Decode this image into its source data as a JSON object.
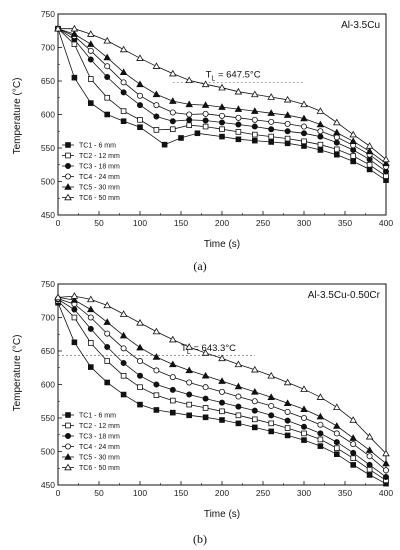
{
  "chart_data": [
    {
      "type": "line",
      "panel_label": "(a)",
      "title": "Al-3.5Cu",
      "xlabel": "Time (s)",
      "ylabel": "Temperature (°C)",
      "xlim": [
        0,
        400
      ],
      "ylim": [
        450,
        750
      ],
      "xticks": [
        0,
        50,
        100,
        150,
        200,
        250,
        300,
        350,
        400
      ],
      "yticks": [
        450,
        500,
        550,
        600,
        650,
        700,
        750
      ],
      "grid": false,
      "legend_position": "bottom-left",
      "annotation": {
        "prefix": "T",
        "subscript": "L",
        "text": " = 647.5°C",
        "value": 647.5,
        "line_x": [
          140,
          300
        ],
        "label_x": 180,
        "label_y": 655
      },
      "series": [
        {
          "name": "TC1 - 6 mm",
          "marker": "square-filled",
          "x": [
            0,
            20,
            40,
            60,
            80,
            100,
            130,
            150,
            170,
            200,
            220,
            240,
            260,
            280,
            300,
            320,
            340,
            360,
            380,
            400
          ],
          "y": [
            728,
            655,
            617,
            600,
            590,
            581,
            555,
            565,
            572,
            567,
            563,
            561,
            559,
            557,
            553,
            547,
            540,
            530,
            518,
            502
          ]
        },
        {
          "name": "TC2 - 12 mm",
          "marker": "square-open",
          "x": [
            0,
            20,
            40,
            60,
            80,
            100,
            120,
            140,
            160,
            180,
            200,
            220,
            240,
            260,
            280,
            300,
            320,
            340,
            360,
            380,
            400
          ],
          "y": [
            728,
            705,
            653,
            625,
            605,
            592,
            577,
            578,
            584,
            582,
            578,
            574,
            570,
            567,
            564,
            560,
            555,
            548,
            538,
            525,
            508
          ]
        },
        {
          "name": "TC3 - 18 mm",
          "marker": "circle-filled",
          "x": [
            0,
            20,
            40,
            60,
            80,
            100,
            120,
            140,
            160,
            180,
            200,
            220,
            240,
            260,
            280,
            300,
            320,
            340,
            360,
            380,
            400
          ],
          "y": [
            728,
            712,
            682,
            656,
            633,
            614,
            597,
            590,
            592,
            591,
            588,
            585,
            582,
            578,
            575,
            572,
            567,
            558,
            547,
            533,
            515
          ]
        },
        {
          "name": "TC4 - 24 mm",
          "marker": "circle-open",
          "x": [
            0,
            20,
            40,
            60,
            80,
            100,
            120,
            140,
            160,
            180,
            200,
            220,
            240,
            260,
            280,
            300,
            320,
            340,
            360,
            380,
            400
          ],
          "y": [
            728,
            717,
            695,
            672,
            648,
            628,
            614,
            603,
            600,
            601,
            598,
            595,
            592,
            589,
            586,
            582,
            575,
            566,
            554,
            540,
            522
          ]
        },
        {
          "name": "TC5 - 30 mm",
          "marker": "triangle-filled",
          "x": [
            0,
            20,
            40,
            60,
            80,
            100,
            120,
            140,
            160,
            180,
            200,
            220,
            240,
            260,
            280,
            300,
            320,
            340,
            360,
            380,
            400
          ],
          "y": [
            728,
            720,
            705,
            685,
            663,
            645,
            630,
            620,
            615,
            614,
            611,
            608,
            605,
            602,
            599,
            594,
            585,
            573,
            560,
            545,
            527
          ]
        },
        {
          "name": "TC6 - 50 mm",
          "marker": "triangle-open",
          "x": [
            0,
            20,
            40,
            60,
            80,
            100,
            120,
            140,
            160,
            180,
            200,
            220,
            240,
            260,
            280,
            300,
            320,
            340,
            360,
            380,
            400
          ],
          "y": [
            728,
            728,
            720,
            710,
            697,
            684,
            672,
            661,
            651,
            645,
            640,
            634,
            630,
            626,
            622,
            615,
            605,
            588,
            570,
            553,
            533
          ]
        }
      ]
    },
    {
      "type": "line",
      "panel_label": "(b)",
      "title": "Al-3.5Cu-0.50Cr",
      "xlabel": "Time (s)",
      "ylabel": "Temperature (°C)",
      "xlim": [
        0,
        400
      ],
      "ylim": [
        450,
        750
      ],
      "xticks": [
        0,
        50,
        100,
        150,
        200,
        250,
        300,
        350,
        400
      ],
      "yticks": [
        450,
        500,
        550,
        600,
        650,
        700,
        750
      ],
      "grid": false,
      "legend_position": "bottom-left",
      "annotation": {
        "prefix": "T",
        "subscript": "L",
        "text": " = 643.3°C",
        "value": 643.3,
        "line_x": [
          0,
          240
        ],
        "label_x": 150,
        "label_y": 650
      },
      "series": [
        {
          "name": "TC1 - 6 mm",
          "marker": "square-filled",
          "x": [
            0,
            20,
            40,
            60,
            80,
            100,
            120,
            140,
            160,
            180,
            200,
            220,
            240,
            260,
            280,
            300,
            320,
            340,
            360,
            380,
            400
          ],
          "y": [
            722,
            663,
            626,
            603,
            585,
            570,
            562,
            558,
            554,
            551,
            547,
            542,
            536,
            530,
            524,
            517,
            508,
            496,
            480,
            465,
            452
          ]
        },
        {
          "name": "TC2 - 12 mm",
          "marker": "square-open",
          "x": [
            0,
            20,
            40,
            60,
            80,
            100,
            120,
            140,
            160,
            180,
            200,
            220,
            240,
            260,
            280,
            300,
            320,
            340,
            360,
            380,
            400
          ],
          "y": [
            725,
            700,
            662,
            635,
            613,
            596,
            584,
            576,
            570,
            565,
            560,
            554,
            548,
            542,
            535,
            527,
            518,
            505,
            490,
            473,
            457
          ]
        },
        {
          "name": "TC3 - 18 mm",
          "marker": "circle-filled",
          "x": [
            0,
            20,
            40,
            60,
            80,
            100,
            120,
            140,
            160,
            180,
            200,
            220,
            240,
            260,
            280,
            300,
            320,
            340,
            360,
            380,
            400
          ],
          "y": [
            727,
            712,
            683,
            656,
            632,
            613,
            600,
            592,
            585,
            579,
            573,
            567,
            561,
            554,
            546,
            537,
            527,
            514,
            498,
            480,
            462
          ]
        },
        {
          "name": "TC4 - 24 mm",
          "marker": "circle-open",
          "x": [
            0,
            20,
            40,
            60,
            80,
            100,
            120,
            140,
            160,
            180,
            200,
            220,
            240,
            260,
            280,
            300,
            320,
            340,
            360,
            380,
            400
          ],
          "y": [
            728,
            720,
            700,
            676,
            654,
            635,
            621,
            611,
            603,
            596,
            589,
            582,
            575,
            568,
            559,
            550,
            540,
            527,
            511,
            493,
            472
          ]
        },
        {
          "name": "TC5 - 30 mm",
          "marker": "triangle-filled",
          "x": [
            0,
            20,
            40,
            60,
            80,
            100,
            120,
            140,
            160,
            180,
            200,
            220,
            240,
            260,
            280,
            300,
            320,
            340,
            360,
            380,
            400
          ],
          "y": [
            730,
            726,
            712,
            693,
            673,
            655,
            641,
            630,
            621,
            613,
            605,
            597,
            589,
            581,
            572,
            563,
            552,
            538,
            520,
            502,
            482
          ]
        },
        {
          "name": "TC6 - 50 mm",
          "marker": "triangle-open",
          "x": [
            0,
            20,
            40,
            60,
            80,
            100,
            120,
            140,
            160,
            180,
            200,
            220,
            240,
            260,
            280,
            300,
            320,
            340,
            360,
            380,
            400
          ],
          "y": [
            730,
            732,
            727,
            718,
            705,
            692,
            679,
            667,
            656,
            647,
            639,
            630,
            622,
            613,
            603,
            593,
            581,
            566,
            547,
            522,
            497
          ]
        }
      ]
    }
  ]
}
